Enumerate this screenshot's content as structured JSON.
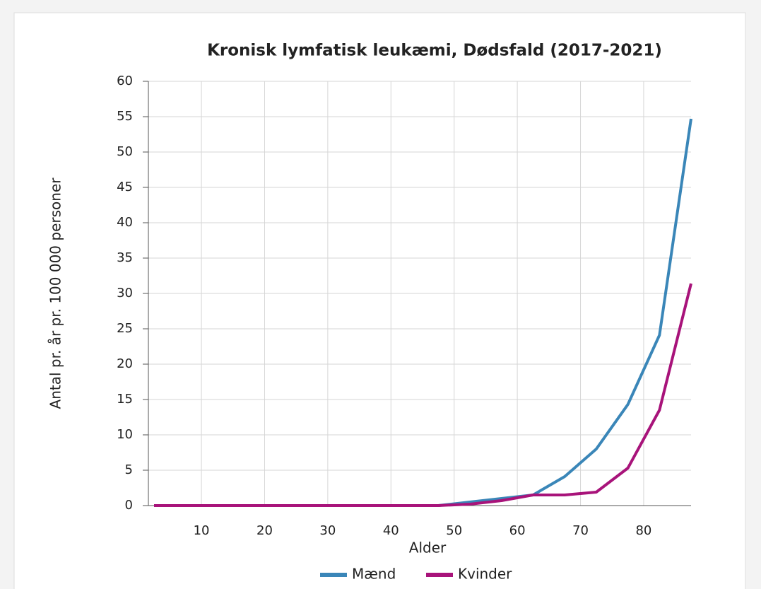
{
  "chart_data": {
    "type": "line",
    "title": "Kronisk lymfatisk leukæmi, Dødsfald (2017-2021)",
    "x_label": "Alder",
    "y_label": "Antal pr. år pr. 100 000 personer",
    "x": [
      2.5,
      7.5,
      12.5,
      17.5,
      22.5,
      27.5,
      32.5,
      37.5,
      42.5,
      47.5,
      52.5,
      57.5,
      62.5,
      67.5,
      72.5,
      77.5,
      82.5,
      87.5
    ],
    "series": [
      {
        "name": "Mænd",
        "color": "#3a86b8",
        "values": [
          0,
          0,
          0,
          0,
          0,
          0,
          0,
          0,
          0,
          0,
          0.5,
          1.0,
          1.5,
          4.1,
          8.0,
          14.3,
          24.1,
          54.7
        ]
      },
      {
        "name": "Kvinder",
        "color": "#a8137a",
        "values": [
          0,
          0,
          0,
          0,
          0,
          0,
          0,
          0,
          0,
          0,
          0.2,
          0.7,
          1.5,
          1.5,
          1.9,
          5.3,
          13.5,
          31.4
        ]
      }
    ],
    "xlim": [
      2.5,
      87.5
    ],
    "xticks": [
      10,
      20,
      30,
      40,
      50,
      60,
      70,
      80
    ],
    "ylim": [
      0,
      60
    ],
    "yticks": [
      0,
      5,
      10,
      15,
      20,
      25,
      30,
      35,
      40,
      45,
      50,
      55,
      60
    ],
    "grid": true,
    "legend": "bottom"
  }
}
